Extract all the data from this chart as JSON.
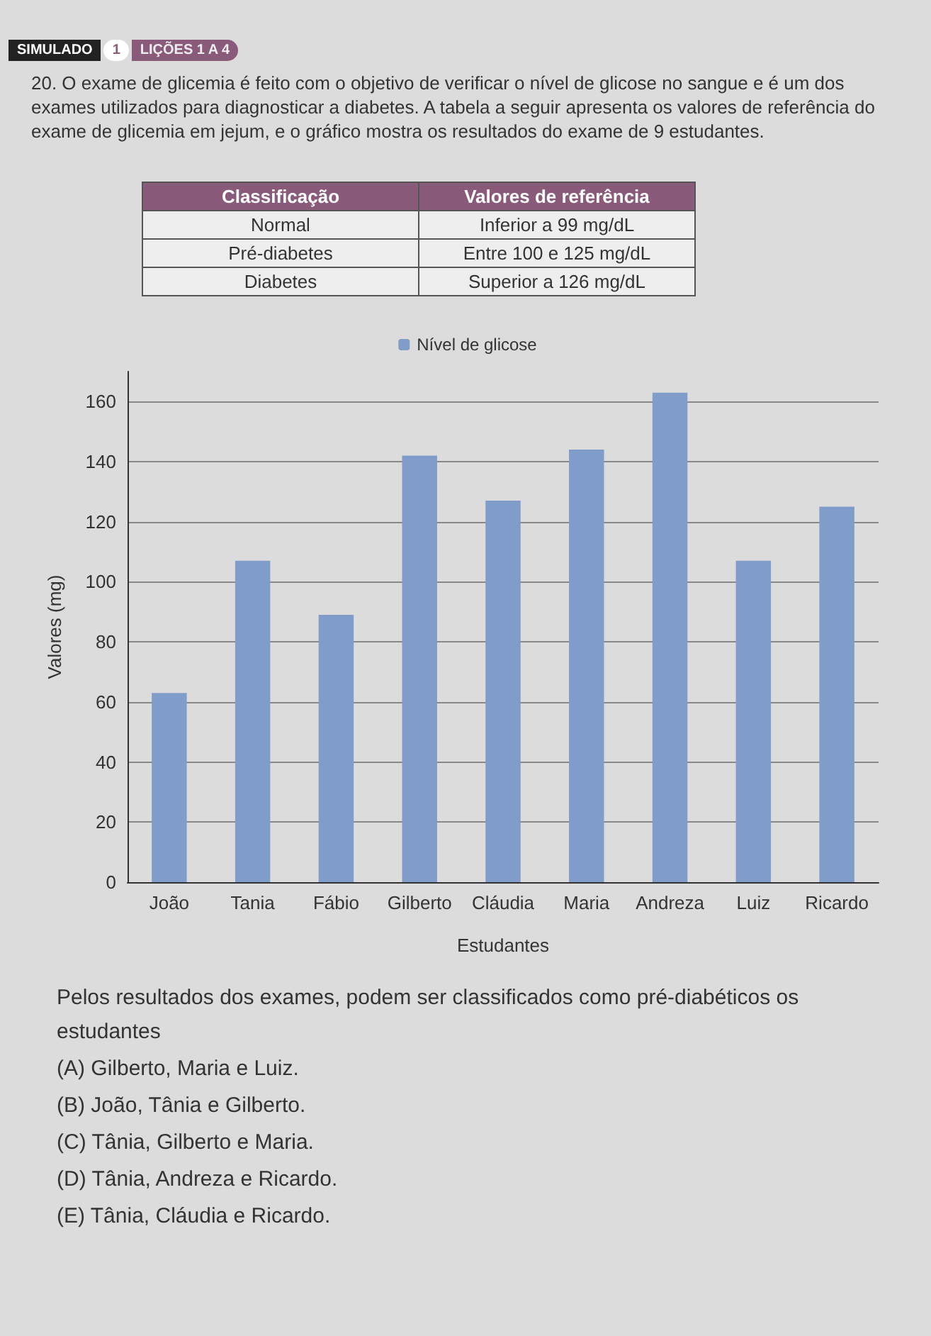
{
  "chart_data": {
    "type": "bar",
    "title": "20. O exame de glicemia é feito com o objetivo de verificar o nível de glicose no sangue e é um dos exames utilizados para diagnosticar a diabetes. A tabela a seguir apresenta os valores de referência do exame de glicemia em jejum, e o gráfico mostra os resultados do exame de 9 estudantes.",
    "xlabel": "Estudantes",
    "ylabel": "Valores (mg)",
    "categories": [
      "João",
      "Tania",
      "Fábio",
      "Gilberto",
      "Cláudia",
      "Maria",
      "Andreza",
      "Luiz",
      "Ricardo"
    ],
    "series": [
      {
        "name": "Nível de glicose",
        "color": "#809dca",
        "values": [
          63,
          107,
          89,
          142,
          127,
          144,
          163,
          107,
          125
        ]
      }
    ],
    "ylim": [
      0,
      170
    ],
    "yticks": [
      0,
      20,
      40,
      60,
      80,
      100,
      120,
      140,
      160
    ],
    "grid": "y",
    "legend": "top",
    "annotations": [
      "SIMULADO",
      "1",
      "LIÇÕES 1 A 4",
      "Classificação",
      "Valores de referência",
      "Normal",
      "Inferior a 99 mg/dL",
      "Pré-diabetes",
      "Entre 100 e 125 mg/dL",
      "Diabetes",
      "Superior a 126 mg/dL",
      "Pelos resultados dos exames, podem ser classificados como pré-diabéticos os estudantes",
      "(A) Gilberto, Maria e Luiz.",
      "(B) João, Tânia e Gilberto.",
      "(C) Tânia, Gilberto e Maria.",
      "(D) Tânia, Andreza e Ricardo.",
      "(E) Tânia, Cláudia e Ricardo."
    ]
  }
}
